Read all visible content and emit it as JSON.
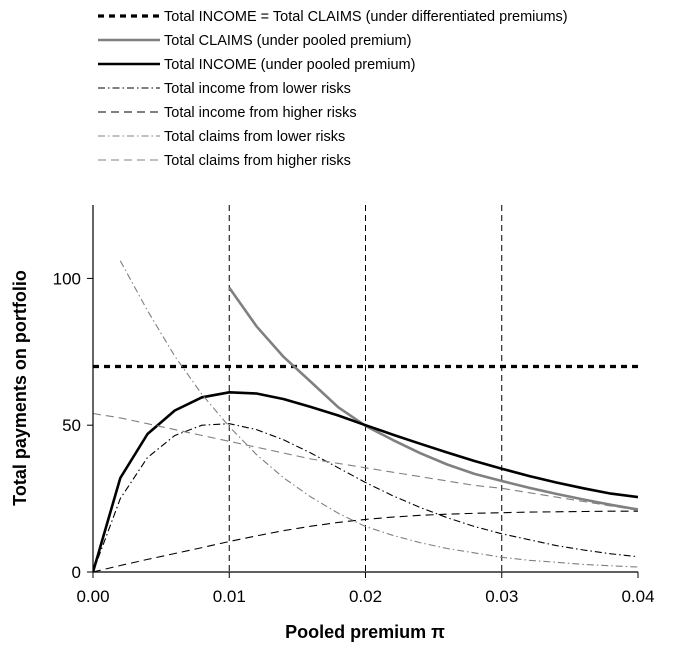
{
  "chart_data": {
    "type": "line",
    "title": "",
    "xlabel": "Pooled premium π",
    "ylabel": "Total payments on portfolio",
    "xlim": [
      0,
      0.04
    ],
    "ylim": [
      0,
      125
    ],
    "x_ticks": [
      0.0,
      0.01,
      0.02,
      0.03,
      0.04
    ],
    "x_tick_labels": [
      "0.00",
      "0.01",
      "0.02",
      "0.03",
      "0.04"
    ],
    "y_ticks": [
      0,
      50,
      100
    ],
    "y_tick_labels": [
      "0",
      "50",
      "100"
    ],
    "vertical_reference_lines_x": [
      0.01,
      0.02,
      0.03
    ],
    "grid": false,
    "legend_position": "top",
    "x": [
      0.0,
      0.002,
      0.004,
      0.006,
      0.008,
      0.01,
      0.012,
      0.014,
      0.016,
      0.018,
      0.02,
      0.022,
      0.024,
      0.026,
      0.028,
      0.03,
      0.032,
      0.034,
      0.036,
      0.038,
      0.04
    ],
    "series": [
      {
        "name": "Total INCOME = Total CLAIMS (under differentiated premiums)",
        "color": "#000000",
        "style": "thick-dotted",
        "values": [
          70,
          70,
          70,
          70,
          70,
          70,
          70,
          70,
          70,
          70,
          70,
          70,
          70,
          70,
          70,
          70,
          70,
          70,
          70,
          70,
          70
        ]
      },
      {
        "name": "Total CLAIMS (under pooled premium)",
        "color": "#808080",
        "style": "thick-solid",
        "values": [
          null,
          null,
          null,
          null,
          null,
          96.8,
          83.7,
          73.2,
          64.7,
          56.1,
          49.8,
          45.0,
          40.5,
          36.6,
          33.4,
          31.0,
          28.7,
          26.6,
          24.7,
          22.9,
          21.3
        ]
      },
      {
        "name": "Total INCOME (under pooled premium)",
        "color": "#000000",
        "style": "thick-solid",
        "values": [
          0,
          32.0,
          47.0,
          55.0,
          59.5,
          61.2,
          60.8,
          58.9,
          56.2,
          53.3,
          50.0,
          46.8,
          43.7,
          40.7,
          37.8,
          35.2,
          32.7,
          30.5,
          28.5,
          26.7,
          25.5
        ]
      },
      {
        "name": "Total income from lower risks",
        "color": "#000000",
        "style": "dash-dot",
        "values": [
          0,
          25.0,
          39.0,
          46.5,
          50.0,
          50.5,
          48.5,
          45.0,
          40.5,
          35.5,
          30.5,
          26.0,
          22.0,
          18.5,
          15.5,
          13.0,
          11.0,
          9.0,
          7.5,
          6.2,
          5.2
        ]
      },
      {
        "name": "Total income from higher risks",
        "color": "#000000",
        "style": "dashed",
        "values": [
          0,
          2.2,
          4.3,
          6.3,
          8.3,
          10.4,
          12.3,
          14.1,
          15.6,
          16.9,
          17.9,
          18.7,
          19.3,
          19.7,
          20.0,
          20.2,
          20.4,
          20.5,
          20.6,
          20.7,
          20.7
        ]
      },
      {
        "name": "Total claims from lower risks",
        "color": "#808080",
        "style": "dash-dot",
        "values": [
          null,
          106.0,
          89.0,
          73.5,
          60.5,
          49.5,
          40.0,
          32.0,
          25.5,
          20.0,
          15.5,
          12.5,
          10.0,
          8.0,
          6.5,
          5.0,
          4.0,
          3.3,
          2.6,
          2.1,
          1.7
        ]
      },
      {
        "name": "Total claims from higher risks",
        "color": "#808080",
        "style": "dashed",
        "values": [
          54.0,
          52.5,
          50.5,
          48.5,
          46.5,
          44.5,
          42.5,
          40.5,
          38.5,
          37.0,
          35.5,
          34.0,
          32.5,
          31.0,
          29.5,
          28.5,
          27.0,
          25.5,
          24.0,
          22.5,
          21.0
        ]
      }
    ]
  }
}
